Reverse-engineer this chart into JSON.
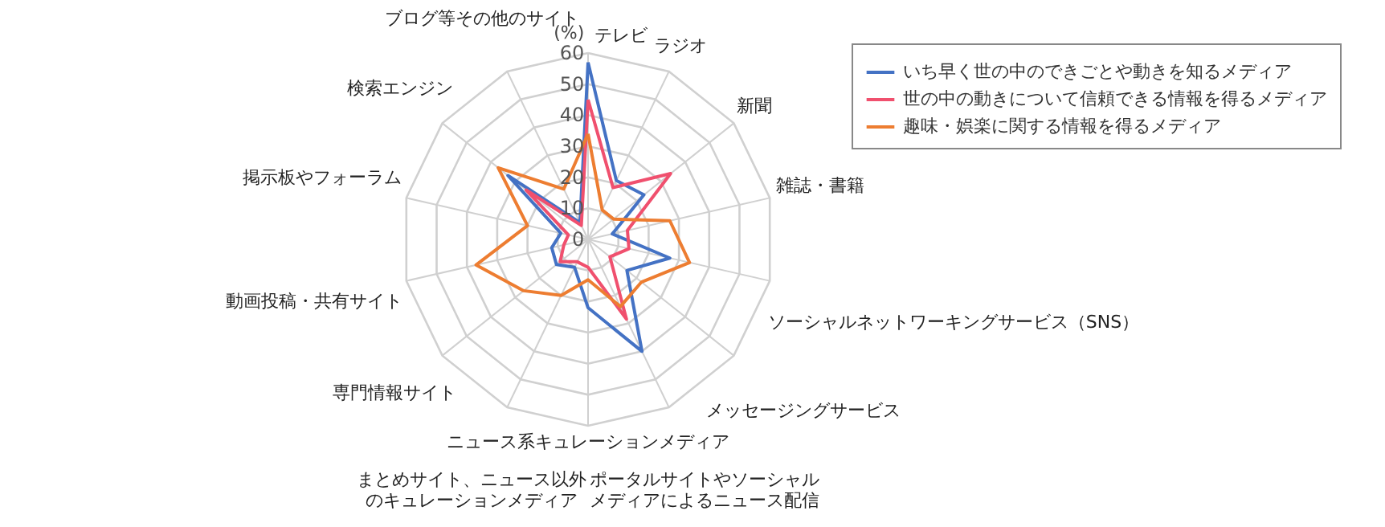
{
  "chart_data": {
    "type": "radar",
    "ylabel": "(%)",
    "categories": [
      "テレビ",
      "ラジオ",
      "新聞",
      "雑誌・書籍",
      "ソーシャルネットワーキングサービス（SNS）",
      "メッセージングサービス",
      "ポータルサイトやソーシャルメディアによるニュース配信",
      "ニュース系キュレーションメディア",
      "まとめサイト、ニュース以外のキュレーションメディア",
      "専門情報サイト",
      "動画投稿・共有サイト",
      "掲示板やフォーラム",
      "検索エンジン",
      "ブログ等その他のサイト"
    ],
    "series": [
      {
        "name": "いち早く世の中のできごとや動きを知るメディア",
        "color": "#4472c4",
        "values": [
          57,
          21,
          23,
          8,
          27,
          16,
          40,
          22,
          10,
          13,
          12,
          9,
          33,
          6
        ]
      },
      {
        "name": "世の中の動きについて信頼できる情報を得るメディア",
        "color": "#f0506e",
        "values": [
          45,
          18.5,
          34,
          13,
          13.5,
          9,
          28.5,
          9,
          8,
          11.5,
          8,
          6.5,
          25.5,
          5
        ]
      },
      {
        "name": "趣味・娯楽に関する情報を得るメディア",
        "color": "#ed7d31",
        "values": [
          34,
          10.5,
          10.5,
          27,
          33.5,
          22,
          24,
          13,
          20,
          26.5,
          37,
          20,
          37,
          18
        ]
      }
    ],
    "ylim": [
      0,
      60
    ],
    "yticks": [
      0,
      10,
      20,
      30,
      40,
      50,
      60
    ],
    "grid": true,
    "legend": "top right"
  }
}
